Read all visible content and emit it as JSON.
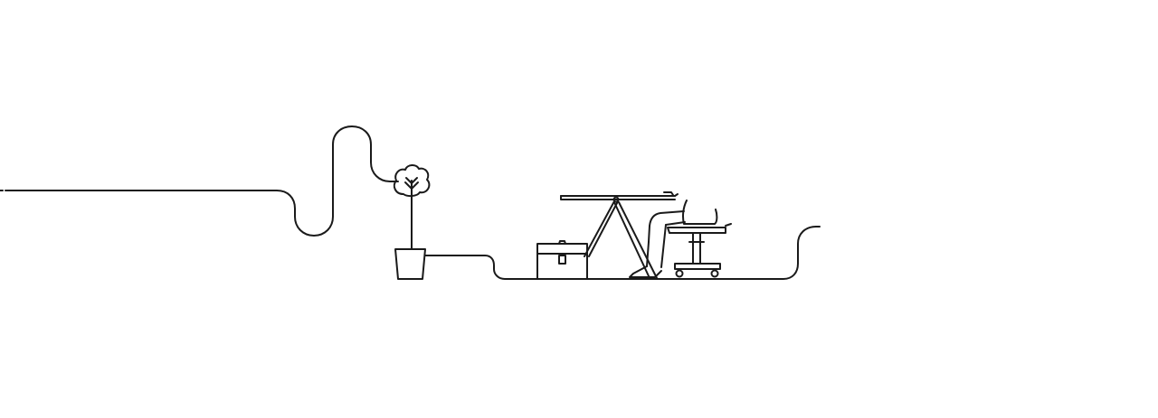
{
  "illustration": {
    "line_color": "#1a1a1a",
    "background": "#ffffff",
    "elements": [
      "line-path",
      "potted-tree-icon",
      "briefcase-icon",
      "standing-desk-icon",
      "seated-person-icon",
      "office-chair-icon"
    ]
  }
}
